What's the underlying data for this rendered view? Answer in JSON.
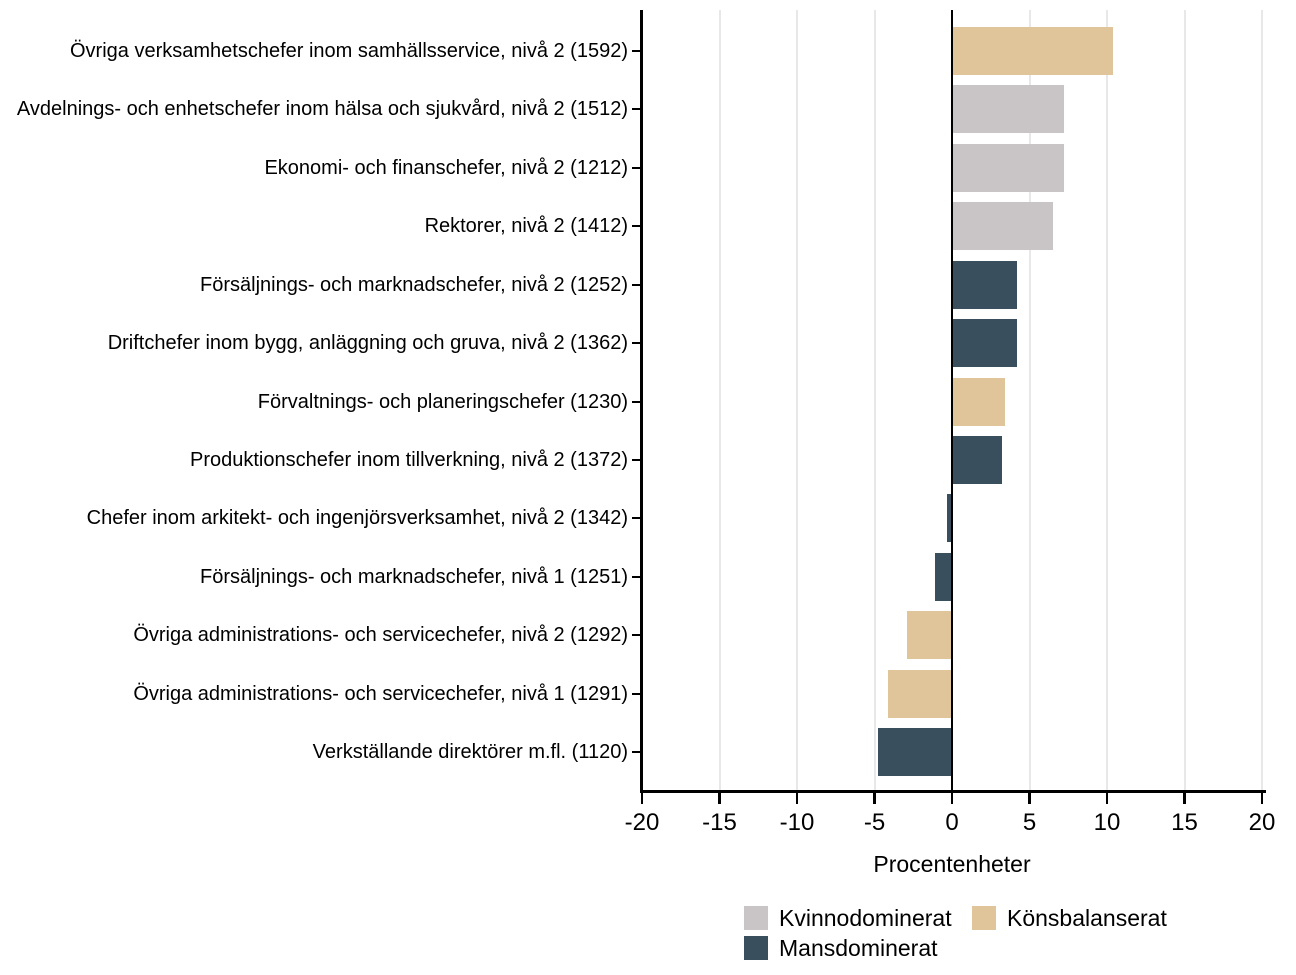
{
  "chart_data": {
    "type": "bar",
    "orientation": "horizontal",
    "title": "",
    "xlabel": "Procentenheter",
    "ylabel": "",
    "xlim": [
      -20,
      20
    ],
    "xticks": [
      -20,
      -15,
      -10,
      -5,
      0,
      5,
      10,
      15,
      20
    ],
    "grid": "vertical-light",
    "legend_position": "bottom",
    "legend": [
      {
        "label": "Kvinnodominerat",
        "color": "#c9c5c6"
      },
      {
        "label": "Könsbalanserat",
        "color": "#e0c59a"
      },
      {
        "label": "Mansdominerat",
        "color": "#3a4f5d"
      }
    ],
    "bars": [
      {
        "label": "Övriga verksamhetschefer inom samhällsservice, nivå 2 (1592)",
        "value": 10.4,
        "group": "Könsbalanserat"
      },
      {
        "label": "Avdelnings- och enhetschefer inom hälsa och sjukvård, nivå 2 (1512)",
        "value": 7.2,
        "group": "Kvinnodominerat"
      },
      {
        "label": "Ekonomi- och finanschefer, nivå 2 (1212)",
        "value": 7.2,
        "group": "Kvinnodominerat"
      },
      {
        "label": "Rektorer, nivå 2 (1412)",
        "value": 6.5,
        "group": "Kvinnodominerat"
      },
      {
        "label": "Försäljnings- och marknadschefer, nivå 2 (1252)",
        "value": 4.2,
        "group": "Mansdominerat"
      },
      {
        "label": "Driftchefer inom bygg, anläggning och gruva, nivå 2 (1362)",
        "value": 4.2,
        "group": "Mansdominerat"
      },
      {
        "label": "Förvaltnings- och planeringschefer (1230)",
        "value": 3.4,
        "group": "Könsbalanserat"
      },
      {
        "label": "Produktionschefer inom tillverkning, nivå 2 (1372)",
        "value": 3.2,
        "group": "Mansdominerat"
      },
      {
        "label": "Chefer inom arkitekt- och ingenjörsverksamhet, nivå 2 (1342)",
        "value": -0.3,
        "group": "Mansdominerat"
      },
      {
        "label": "Försäljnings- och marknadschefer, nivå 1 (1251)",
        "value": -1.1,
        "group": "Mansdominerat"
      },
      {
        "label": "Övriga administrations- och servicechefer, nivå 2 (1292)",
        "value": -2.9,
        "group": "Könsbalanserat"
      },
      {
        "label": "Övriga administrations- och servicechefer, nivå 1 (1291)",
        "value": -4.1,
        "group": "Könsbalanserat"
      },
      {
        "label": "Verkställande direktörer m.fl. (1120)",
        "value": -4.8,
        "group": "Mansdominerat"
      }
    ]
  },
  "colors": {
    "axis": "#000000",
    "grid": "#e8e8e8",
    "background": "#ffffff",
    "text": "#000000"
  }
}
